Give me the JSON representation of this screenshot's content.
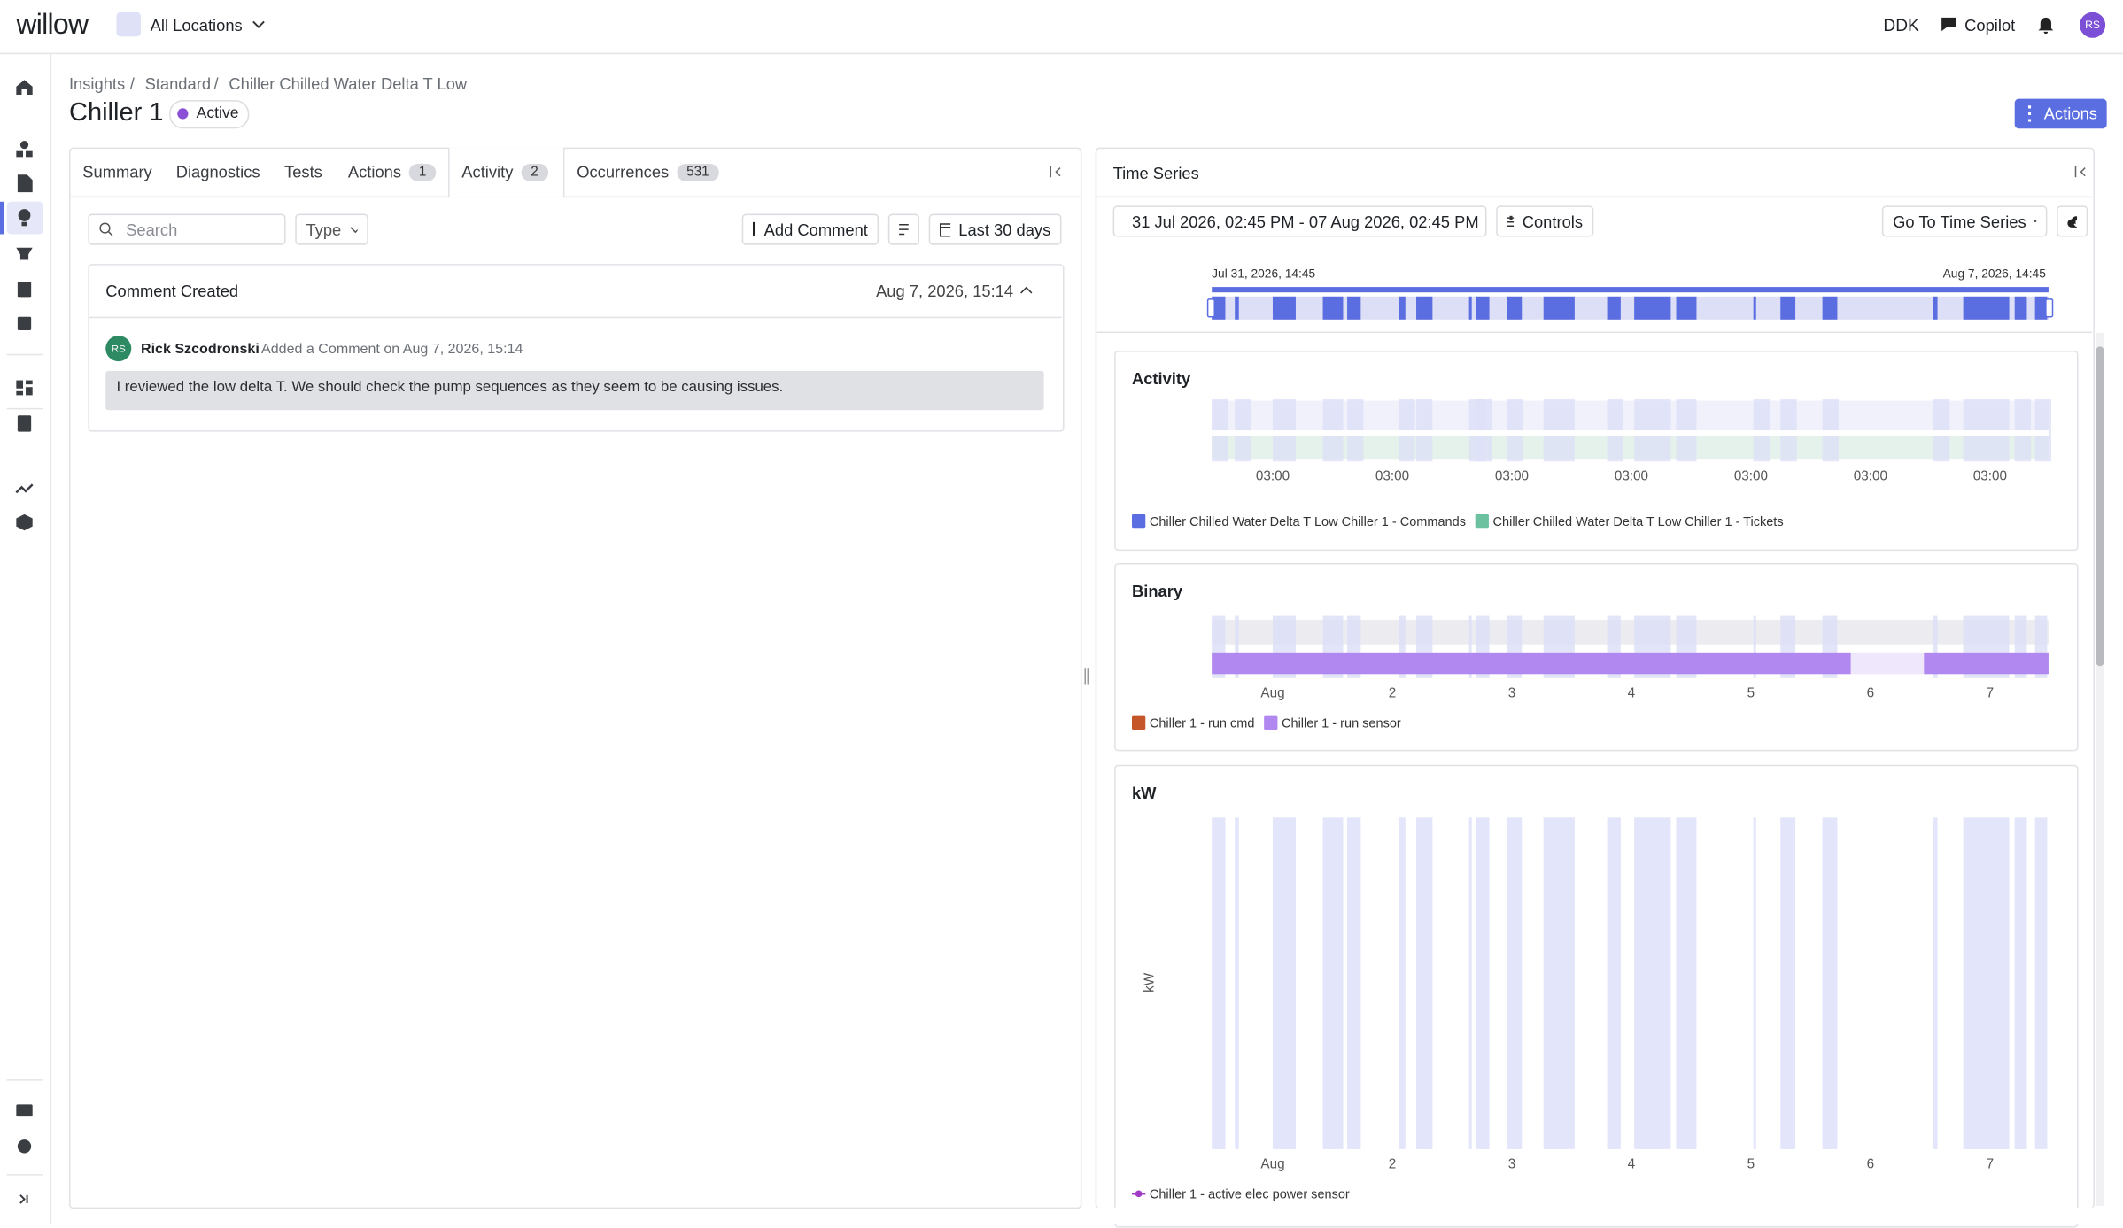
{
  "header": {
    "logo": "willow",
    "location": "All Locations",
    "user_code": "DDK",
    "copilot": "Copilot",
    "avatar": "RS"
  },
  "breadcrumbs": [
    "Insights",
    "Standard",
    "Chiller Chilled Water Delta T Low"
  ],
  "title": "Chiller 1",
  "status": "Active",
  "actions_button": "Actions",
  "tabs": [
    {
      "label": "Summary"
    },
    {
      "label": "Diagnostics"
    },
    {
      "label": "Tests"
    },
    {
      "label": "Actions",
      "count": 1
    },
    {
      "label": "Activity",
      "count": 2
    },
    {
      "label": "Occurrences",
      "count": 531
    }
  ],
  "toolbar": {
    "search_placeholder": "Search",
    "type_filter": "Type",
    "add_comment": "Add Comment",
    "date_range": "Last 30 days"
  },
  "activity": {
    "event": "Comment Created",
    "timestamp": "Aug 7, 2026, 15:14",
    "avatar": "RS",
    "author": "Rick Szcodronski",
    "action": "Added a Comment on Aug 7, 2026, 15:14",
    "comment": "I reviewed the low delta T. We should check the pump sequences as they seem to be causing issues."
  },
  "time_series": {
    "title": "Time Series",
    "range": "31 Jul 2026, 02:45 PM - 07 Aug 2026, 02:45 PM",
    "controls": "Controls",
    "go_to": "Go To Time Series",
    "brush_start": "Jul 31, 2026, 14:45",
    "brush_end": "Aug 7, 2026, 14:45",
    "charts": [
      {
        "title": "Activity",
        "x_labels": [
          "03:00",
          "03:00",
          "03:00",
          "03:00",
          "03:00",
          "03:00",
          "03:00"
        ],
        "legend": [
          {
            "name": "Chiller Chilled Water Delta T Low Chiller 1 - Commands",
            "color": "#5b6ee1"
          },
          {
            "name": "Chiller Chilled Water Delta T Low Chiller 1 - Tickets",
            "color": "#6cc2a0"
          }
        ]
      },
      {
        "title": "Binary",
        "x_labels": [
          "Aug",
          "2",
          "3",
          "4",
          "5",
          "6",
          "7"
        ],
        "legend": [
          {
            "name": "Chiller 1 - run cmd",
            "color": "#c4562a"
          },
          {
            "name": "Chiller 1 - run sensor",
            "color": "#b188f0"
          }
        ]
      },
      {
        "title": "kW",
        "y_label": "kW",
        "x_labels": [
          "Aug",
          "2",
          "3",
          "4",
          "5",
          "6",
          "7"
        ],
        "legend": [
          {
            "name": "Chiller 1 - active elec power sensor",
            "color": "#a23bc4"
          }
        ]
      }
    ]
  }
}
